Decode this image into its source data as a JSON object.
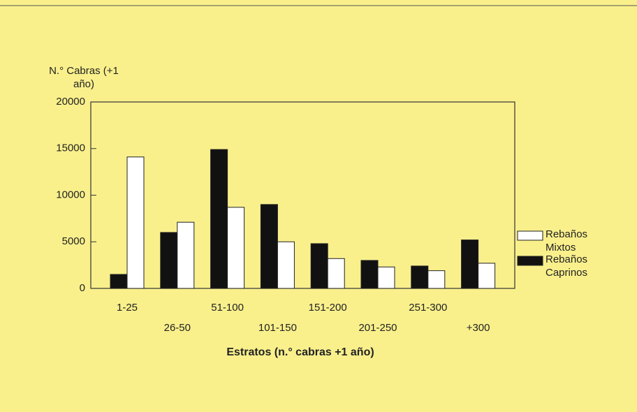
{
  "chart_data": {
    "type": "bar",
    "y_label": "N.° Cabras (+1 año)",
    "x_label": "Estratos (n.° cabras +1 año)",
    "categories": [
      "1-25",
      "26-50",
      "51-100",
      "101-150",
      "151-200",
      "201-250",
      "251-300",
      "+300"
    ],
    "series": [
      {
        "name": "Rebaños Caprinos",
        "color": "#111111",
        "values": [
          1500,
          6000,
          14900,
          9000,
          4800,
          3000,
          2400,
          5200
        ]
      },
      {
        "name": "Rebaños Mixtos",
        "color": "#ffffff",
        "values": [
          14100,
          7100,
          8700,
          5000,
          3200,
          2300,
          1900,
          2700
        ]
      }
    ],
    "ylim": [
      0,
      20000
    ],
    "yticks": [
      0,
      5000,
      10000,
      15000,
      20000
    ],
    "legend": "right"
  }
}
